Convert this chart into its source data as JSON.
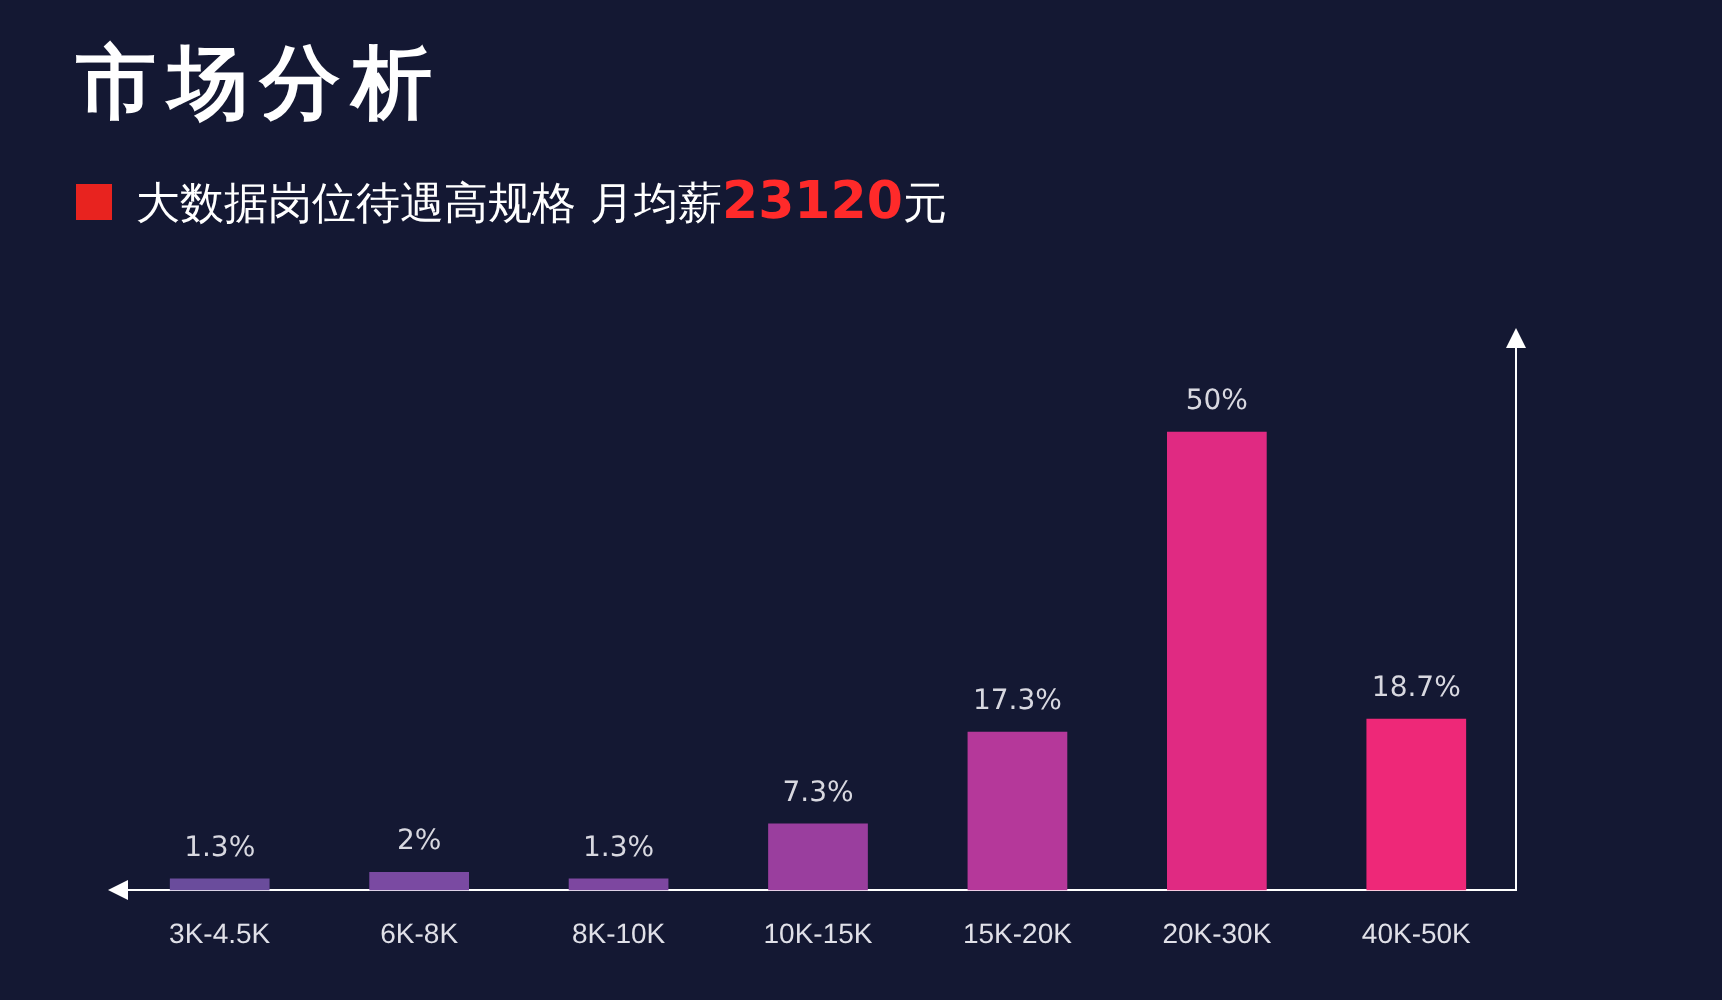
{
  "chart_data": {
    "type": "bar",
    "title": "市场分析",
    "subtitle": "大数据岗位待遇高规格 月均薪23120元",
    "categories": [
      "3K-4.5K",
      "6K-8K",
      "8K-10K",
      "10K-15K",
      "15K-20K",
      "20K-30K",
      "40K-50K"
    ],
    "values": [
      1.3,
      2,
      1.3,
      7.3,
      17.3,
      50,
      18.7
    ],
    "colors": [
      "#6a4c9c",
      "#7a4aa2",
      "#7d47a0",
      "#9a3e9e",
      "#b5389a",
      "#e02a82",
      "#ee2878"
    ],
    "value_labels": [
      "1.3%",
      "2%",
      "1.3%",
      "7.3%",
      "17.3%",
      "50%",
      "18.7%"
    ],
    "grid": false,
    "legend": false
  }
}
